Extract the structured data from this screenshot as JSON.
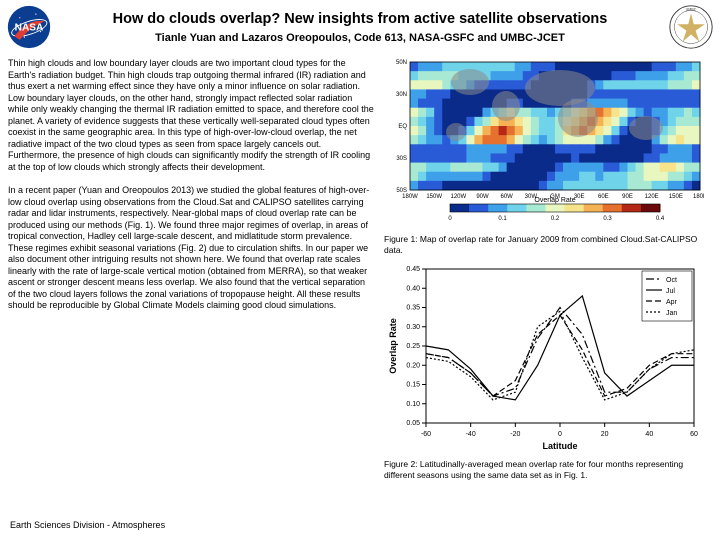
{
  "header": {
    "title": "How do clouds overlap? New insights from active satellite observations",
    "authors": "Tianle Yuan and Lazaros Oreopoulos, Code 613, NASA-GSFC and UMBC-JCET"
  },
  "paragraphs": {
    "p1": "Thin high clouds and low boundary layer clouds are two important cloud types for the Earth's radiation budget. Thin high clouds trap outgoing thermal infrared (IR) radiation and thus exert a net warming effect since they have only a minor influence on solar radiation. Low boundary layer clouds, on the other hand, strongly impact reflected solar radiation while only weakly changing the thermal IR radiation emitted to space, and therefore cool the planet. A variety of evidence suggests that these vertically well-separated cloud types often coexist in the same geographic area. In this type of high-over-low-cloud overlap, the net radiative impact of the two cloud types as seen from space largely cancels out. Furthermore, the presence of high clouds can significantly modify the strength of IR cooling at the top of low clouds which strongly affects their development.",
    "p2": "In a recent paper (Yuan and Oreopoulos 2013) we studied the global features of high-over-low cloud overlap using observations from the Cloud.Sat and CALIPSO satellites carrying radar and lidar instruments, respectively. Near-global maps of cloud overlap rate can be produced using our methods (Fig. 1). We found three major regimes of overlap, in areas of tropical convection, Hadley cell large-scale descent, and midlatitude storm prevalence. These regimes exhibit seasonal variations (Fig. 2) due to circulation shifts. In our paper we also document other intriguing results not shown here. We found that overlap rate scales linearly with the rate of large-scale vertical motion (obtained from MERRA), so that weaker ascent or stronger descent means less overlap. We also found that the vertical separation of the two cloud layers follows the zonal variations of tropopause height. All these results should be reproducible by Global Climate Models claiming good cloud simulations."
  },
  "captions": {
    "c1": "Figure 1:  Map of overlap rate for January 2009 from combined Cloud.Sat-CALIPSO data.",
    "c2": "Figure 2:  Latitudinally-averaged mean overlap rate for four months representing different seasons using the same data set as in Fig. 1."
  },
  "footer": "Earth Sciences Division - Atmospheres",
  "fig1": {
    "type": "heatmap-map",
    "xlabel_ticks": [
      "180W",
      "150W",
      "120W",
      "90W",
      "60W",
      "30W",
      "GM",
      "30E",
      "60E",
      "90E",
      "120E",
      "150E",
      "180E"
    ],
    "ylabel_ticks": [
      "50N",
      "30N",
      "EQ",
      "30S",
      "50S"
    ],
    "colorbar_label": "Overlap Rate",
    "colorbar_range": [
      0,
      0.4
    ],
    "colorbar_ticks": [
      0,
      0.1,
      0.2,
      0.3,
      0.4
    ],
    "colormap": [
      "#0b2b8a",
      "#2a5bd7",
      "#3fa0ea",
      "#6fd3e9",
      "#a8e9d4",
      "#e8f7bf",
      "#f6e38a",
      "#f4b255",
      "#e6702e",
      "#b52818",
      "#6b0a0a"
    ],
    "background_color": "#ffffff",
    "land_color": "#8a8a8a",
    "tick_fontsize": 6,
    "label_fontsize": 7
  },
  "fig2": {
    "type": "line",
    "xlabel": "Latitude",
    "ylabel": "Overlap Rate",
    "xlim": [
      -60,
      60
    ],
    "ylim": [
      0.05,
      0.45
    ],
    "xticks": [
      -60,
      -40,
      -20,
      0,
      20,
      40,
      60
    ],
    "yticks": [
      0.05,
      0.1,
      0.15,
      0.2,
      0.25,
      0.3,
      0.35,
      0.4,
      0.45
    ],
    "label_fontsize": 9,
    "tick_fontsize": 7,
    "background_color": "#ffffff",
    "axis_color": "#000000",
    "line_width": 1.2,
    "legend": [
      "Oct",
      "Jul",
      "Apr",
      "Jan"
    ],
    "legend_colors": [
      "#000000",
      "#000000",
      "#000000",
      "#000000"
    ],
    "legend_styles": [
      "dashdot",
      "solid",
      "dash",
      "dot"
    ],
    "series": {
      "Jan": {
        "color": "#000000",
        "dash": "2,2",
        "x": [
          -60,
          -50,
          -40,
          -30,
          -20,
          -10,
          0,
          10,
          20,
          30,
          40,
          50,
          60
        ],
        "y": [
          0.22,
          0.21,
          0.17,
          0.11,
          0.13,
          0.3,
          0.34,
          0.22,
          0.11,
          0.13,
          0.19,
          0.23,
          0.24
        ]
      },
      "Apr": {
        "color": "#000000",
        "dash": "6,3",
        "x": [
          -60,
          -50,
          -40,
          -30,
          -20,
          -10,
          0,
          10,
          20,
          30,
          40,
          50,
          60
        ],
        "y": [
          0.23,
          0.22,
          0.18,
          0.12,
          0.16,
          0.28,
          0.33,
          0.24,
          0.12,
          0.14,
          0.2,
          0.23,
          0.23
        ]
      },
      "Jul": {
        "color": "#000000",
        "dash": "",
        "x": [
          -60,
          -50,
          -40,
          -30,
          -20,
          -10,
          0,
          10,
          20,
          30,
          40,
          50,
          60
        ],
        "y": [
          0.25,
          0.24,
          0.19,
          0.12,
          0.11,
          0.2,
          0.33,
          0.38,
          0.18,
          0.12,
          0.16,
          0.2,
          0.2
        ]
      },
      "Oct": {
        "color": "#000000",
        "dash": "8,3,2,3",
        "x": [
          -60,
          -50,
          -40,
          -30,
          -20,
          -10,
          0,
          10,
          20,
          30,
          40,
          50,
          60
        ],
        "y": [
          0.23,
          0.22,
          0.18,
          0.12,
          0.14,
          0.27,
          0.35,
          0.28,
          0.13,
          0.13,
          0.19,
          0.22,
          0.22
        ]
      }
    }
  }
}
